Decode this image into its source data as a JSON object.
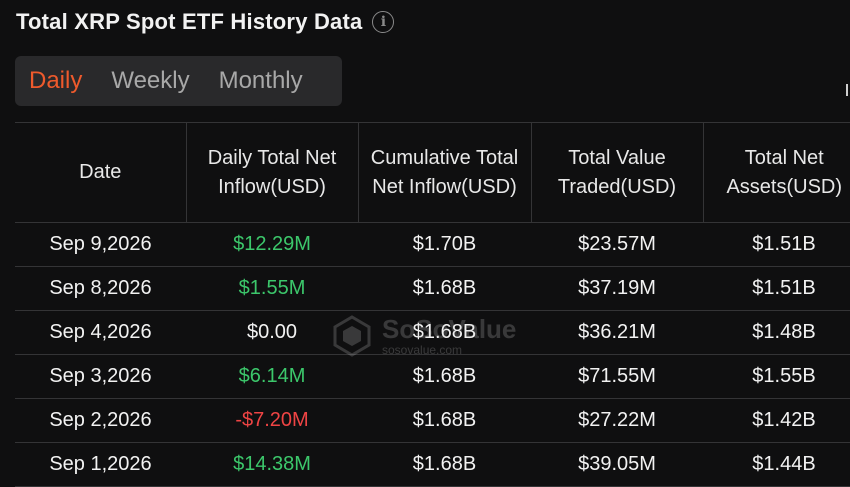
{
  "header": {
    "title": "Total XRP Spot ETF History Data",
    "info_icon": "info-icon"
  },
  "tabs": [
    {
      "label": "Daily",
      "active": true
    },
    {
      "label": "Weekly",
      "active": false
    },
    {
      "label": "Monthly",
      "active": false
    }
  ],
  "table": {
    "columns": [
      "Date",
      "Daily Total Net Inflow(USD)",
      "Cumulative Total Net Inflow(USD)",
      "Total Value Traded(USD)",
      "Total Net Assets(USD)"
    ],
    "rows": [
      {
        "date": "Sep 9,2026",
        "daily_inflow": "$12.29M",
        "cumulative": "$1.70B",
        "traded": "$23.57M",
        "assets": "$1.51B"
      },
      {
        "date": "Sep 8,2026",
        "daily_inflow": "$1.55M",
        "cumulative": "$1.68B",
        "traded": "$37.19M",
        "assets": "$1.51B"
      },
      {
        "date": "Sep 4,2026",
        "daily_inflow": "$0.00",
        "cumulative": "$1.68B",
        "traded": "$36.21M",
        "assets": "$1.48B"
      },
      {
        "date": "Sep 3,2026",
        "daily_inflow": "$6.14M",
        "cumulative": "$1.68B",
        "traded": "$71.55M",
        "assets": "$1.55B"
      },
      {
        "date": "Sep 2,2026",
        "daily_inflow": "-$7.20M",
        "cumulative": "$1.68B",
        "traded": "$27.22M",
        "assets": "$1.42B"
      },
      {
        "date": "Sep 1,2026",
        "daily_inflow": "$14.38M",
        "cumulative": "$1.68B",
        "traded": "$39.05M",
        "assets": "$1.44B"
      }
    ]
  },
  "watermark": {
    "name": "SoSoValue",
    "url": "sosovalue.com"
  },
  "colors": {
    "accent": "#ee5a2c",
    "positive": "#3cc76b",
    "negative": "#ef4444"
  }
}
